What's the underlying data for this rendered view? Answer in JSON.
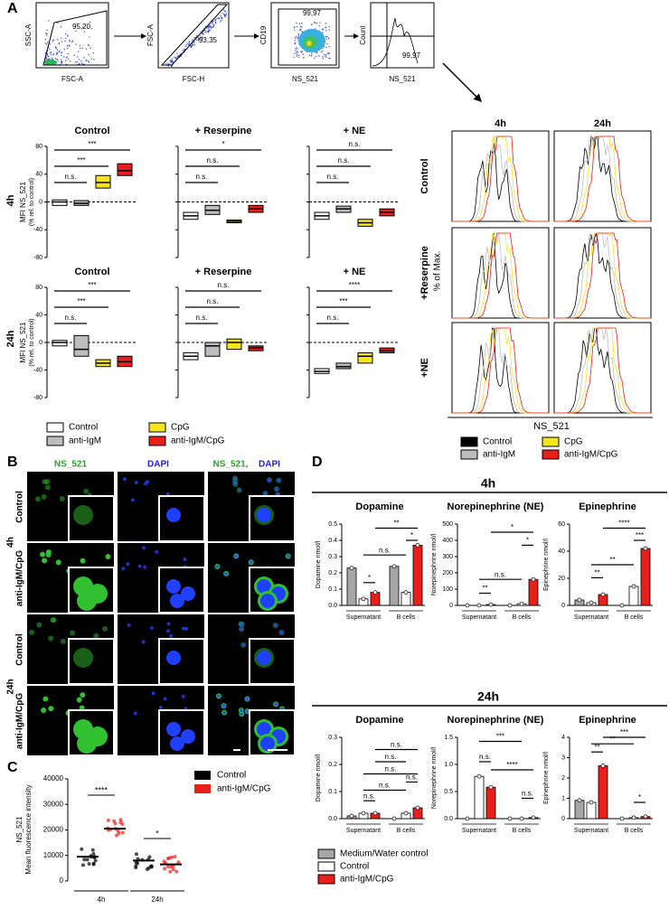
{
  "A": {
    "letter": "A",
    "gating": [
      {
        "x_label": "FSC-A",
        "y_label": "SSC-A",
        "gate": "95,20"
      },
      {
        "x_label": "FSC-H",
        "y_label": "FSC-A",
        "gate": "93,35"
      },
      {
        "x_label": "NS_521",
        "y_label": "CD19",
        "gate": "99,97"
      },
      {
        "x_label": "NS_521",
        "y_label": "Count",
        "gate": "99,97"
      }
    ],
    "rows": [
      "4h",
      "24h"
    ],
    "y_label": "MFI NS_521",
    "y_sublabel": "(% rel. to control)",
    "ylim": [
      -80,
      80
    ],
    "yticks": [
      -80,
      -40,
      0,
      40,
      80
    ],
    "plots": [
      {
        "title": "Control",
        "boxes": [
          {
            "q1": -5,
            "median": 0,
            "q3": 3
          },
          {
            "q1": -5,
            "median": -2,
            "q3": 2
          },
          {
            "q1": 20,
            "median": 28,
            "q3": 38
          },
          {
            "q1": 38,
            "median": 45,
            "q3": 55
          }
        ],
        "sig": [
          "n.s.",
          "***",
          "***"
        ]
      },
      {
        "title": "+ Reserpine",
        "boxes": [
          {
            "q1": -25,
            "median": -20,
            "q3": -15
          },
          {
            "q1": -18,
            "median": -12,
            "q3": -5
          },
          {
            "q1": -30,
            "median": -28,
            "q3": -26
          },
          {
            "q1": -15,
            "median": -10,
            "q3": -5
          }
        ],
        "sig": [
          "n.s.",
          "n.s.",
          "*"
        ]
      },
      {
        "title": "+ NE",
        "boxes": [
          {
            "q1": -25,
            "median": -20,
            "q3": -15
          },
          {
            "q1": -15,
            "median": -10,
            "q3": -6
          },
          {
            "q1": -35,
            "median": -30,
            "q3": -25
          },
          {
            "q1": -20,
            "median": -15,
            "q3": -10
          }
        ],
        "sig": [
          "n.s.",
          "n.s.",
          "n.s."
        ]
      },
      {
        "title": "Control",
        "boxes": [
          {
            "q1": -5,
            "median": 0,
            "q3": 3
          },
          {
            "q1": -20,
            "median": -10,
            "q3": 10
          },
          {
            "q1": -35,
            "median": -30,
            "q3": -25
          },
          {
            "q1": -35,
            "median": -28,
            "q3": -20
          }
        ],
        "sig": [
          "n.s.",
          "***",
          "***"
        ]
      },
      {
        "title": "+ Reserpine",
        "boxes": [
          {
            "q1": -25,
            "median": -20,
            "q3": -15
          },
          {
            "q1": -20,
            "median": -5,
            "q3": 0
          },
          {
            "q1": -10,
            "median": 0,
            "q3": 5
          },
          {
            "q1": -12,
            "median": -8,
            "q3": -5
          }
        ],
        "sig": [
          "n.s.",
          "n.s.",
          "n.s."
        ]
      },
      {
        "title": "+ NE",
        "boxes": [
          {
            "q1": -45,
            "median": -42,
            "q3": -38
          },
          {
            "q1": -38,
            "median": -35,
            "q3": -30
          },
          {
            "q1": -30,
            "median": -20,
            "q3": -15
          },
          {
            "q1": -15,
            "median": -12,
            "q3": -8
          }
        ],
        "sig": [
          "n.s.",
          "***",
          "****"
        ]
      }
    ],
    "legend": [
      {
        "name": "Control",
        "color": "#ffffff"
      },
      {
        "name": "anti-IgM",
        "color": "#bdbdbd"
      },
      {
        "name": "CpG",
        "color": "#f5e61b"
      },
      {
        "name": "anti-IgM/CpG",
        "color": "#e8201c"
      }
    ],
    "histograms": {
      "columns": [
        "4h",
        "24h"
      ],
      "rows": [
        "Control",
        "+Reserpine",
        "+NE"
      ],
      "y_label": "% of Max.",
      "x_label": "NS_521",
      "legend": [
        {
          "name": "Control",
          "color": "#000000"
        },
        {
          "name": "anti-IgM",
          "color": "#bdbdbd"
        },
        {
          "name": "CpG",
          "color": "#f5e61b"
        },
        {
          "name": "anti-IgM/CpG",
          "color": "#e8201c"
        }
      ]
    }
  },
  "B": {
    "letter": "B",
    "columns": [
      "NS_521",
      "DAPI",
      "NS_521,",
      "DAPI"
    ],
    "times": [
      "4h",
      "24h"
    ],
    "conditions": [
      "Control",
      "anti-IgM/CpG",
      "Control",
      "anti-IgM/CpG"
    ]
  },
  "C": {
    "letter": "C",
    "y_label": "NS_521",
    "y_sublabel": "Mean fluorescence intensity",
    "ylim": [
      0,
      40000
    ],
    "yticks": [
      0,
      10000,
      20000,
      30000,
      40000
    ],
    "categories": [
      "4h",
      "24h"
    ],
    "series": [
      {
        "name": "Control",
        "color": "#000000",
        "values": [
          9500,
          8000
        ]
      },
      {
        "name": "anti-IgM/CpG",
        "color": "#e8201c",
        "values": [
          20500,
          6500
        ]
      }
    ],
    "sig": [
      "****",
      "*"
    ]
  },
  "D": {
    "letter": "D",
    "groups": [
      "Supernatant",
      "B cells"
    ],
    "legend": [
      {
        "name": "Medium/Water control",
        "color": "#a6a6a6"
      },
      {
        "name": "Control",
        "color": "#ffffff"
      },
      {
        "name": "anti-IgM/CpG",
        "color": "#e8201c"
      }
    ],
    "sections": [
      {
        "title": "4h",
        "charts": [
          {
            "title": "Dopamine",
            "y_label": "Dopamine nmol/l",
            "ylim": [
              0,
              0.5
            ],
            "yticks": [
              {
                "value": 0,
                "label": "0.0"
              },
              0.1,
              0.2,
              0.3,
              0.4,
              0.5
            ],
            "values": [
              0.23,
              0.04,
              0.08,
              0.24,
              0.08,
              0.37
            ],
            "sig": [
              "n.s.",
              "*",
              "**",
              "*"
            ]
          },
          {
            "title": "Norepinephrine (NE)",
            "y_label": "Norepinephrine nmol/l",
            "ylim": [
              0,
              500
            ],
            "yticks": [
              0,
              100,
              200,
              300,
              400,
              500
            ],
            "values": [
              0,
              0,
              5,
              0,
              10,
              160
            ],
            "sig": [
              "**",
              "n.s.",
              "*",
              "*"
            ]
          },
          {
            "title": "Epinephrine",
            "y_label": "Epinephrine nmol/l",
            "ylim": [
              0,
              60
            ],
            "yticks": [
              0,
              20,
              40,
              60
            ],
            "values": [
              4,
              2,
              8,
              0,
              14,
              42
            ],
            "sig": [
              "**",
              "**",
              "****",
              "***"
            ]
          }
        ]
      },
      {
        "title": "24h",
        "charts": [
          {
            "title": "Dopamine",
            "y_label": "Dopamine nmol/l",
            "ylim": [
              0,
              0.3
            ],
            "yticks": [
              {
                "value": 0,
                "label": "0.0"
              },
              0.1,
              0.2,
              0.3
            ],
            "values": [
              0.01,
              0.02,
              0.02,
              0,
              0.02,
              0.04
            ],
            "sig": [
              "n.s.",
              "n.s.",
              "n.s.",
              "n.s.",
              "n.s.",
              "n.s."
            ]
          },
          {
            "title": "Norepinephrine (NE)",
            "y_label": "Norepinephrine nmol/l",
            "ylim": [
              0,
              1.5
            ],
            "yticks": [
              {
                "value": 0,
                "label": "0.0"
              },
              0.5,
              {
                "value": 1,
                "label": "1.0"
              },
              1.5
            ],
            "values": [
              0,
              0.78,
              0.58,
              0,
              0,
              0.02
            ],
            "sig": [
              "n.s.",
              "***",
              "****",
              "n.s."
            ]
          },
          {
            "title": "Epinephrine",
            "y_label": "Epinephrine nmol/l",
            "ylim": [
              0,
              4
            ],
            "yticks": [
              0,
              1,
              2,
              3,
              4
            ],
            "values": [
              0.9,
              0.8,
              2.6,
              0,
              0.05,
              0.1
            ],
            "sig": [
              "**",
              "**",
              "***",
              "*"
            ]
          }
        ]
      }
    ]
  }
}
